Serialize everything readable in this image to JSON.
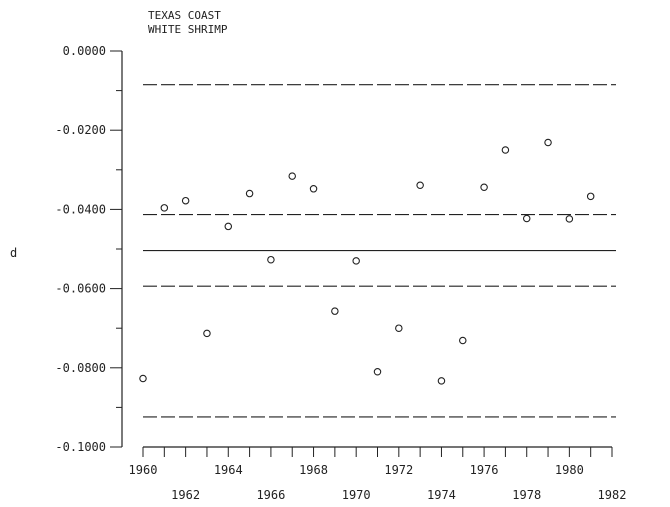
{
  "chart_data": {
    "type": "scatter",
    "title": [
      "TEXAS COAST",
      "WHITE SHRIMP"
    ],
    "ylabel": "d",
    "xlabel": "",
    "ylim": [
      -0.1,
      0.0
    ],
    "xlim": [
      1960,
      1982
    ],
    "y_ticks_labeled": [
      "0.0000",
      "-0.0200",
      "-0.0400",
      "-0.0600",
      "-0.0800",
      "-0.1000"
    ],
    "y_tick_values": [
      0.0,
      -0.02,
      -0.04,
      -0.06,
      -0.08,
      -0.1
    ],
    "y_minor_step": 0.01,
    "x_ticks_row1": [
      "1960",
      "1964",
      "1968",
      "1972",
      "1976",
      "1980"
    ],
    "x_ticks_row2": [
      "1962",
      "1966",
      "1970",
      "1974",
      "1978",
      "1982"
    ],
    "x_tick_step": 1,
    "series": [
      {
        "points": [
          [
            1960,
            -0.0827
          ],
          [
            1961,
            -0.0396
          ],
          [
            1962,
            -0.0378
          ],
          [
            1963,
            -0.0713
          ],
          [
            1964,
            -0.0443
          ],
          [
            1965,
            -0.036
          ],
          [
            1966,
            -0.0527
          ],
          [
            1967,
            -0.0316
          ],
          [
            1968,
            -0.0348
          ],
          [
            1969,
            -0.0657
          ],
          [
            1970,
            -0.053
          ],
          [
            1971,
            -0.081
          ],
          [
            1972,
            -0.07
          ],
          [
            1973,
            -0.0339
          ],
          [
            1974,
            -0.0833
          ],
          [
            1975,
            -0.0731
          ],
          [
            1976,
            -0.0344
          ],
          [
            1977,
            -0.025
          ],
          [
            1978,
            -0.0423
          ],
          [
            1979,
            -0.0231
          ],
          [
            1980,
            -0.0424
          ],
          [
            1981,
            -0.0367
          ]
        ]
      }
    ],
    "reference_lines": [
      {
        "y": -0.0085,
        "style": "dashed"
      },
      {
        "y": -0.0413,
        "style": "dashed"
      },
      {
        "y": -0.0504,
        "style": "solid"
      },
      {
        "y": -0.0594,
        "style": "dashed"
      },
      {
        "y": -0.0924,
        "style": "dashed"
      }
    ],
    "grid": false
  }
}
